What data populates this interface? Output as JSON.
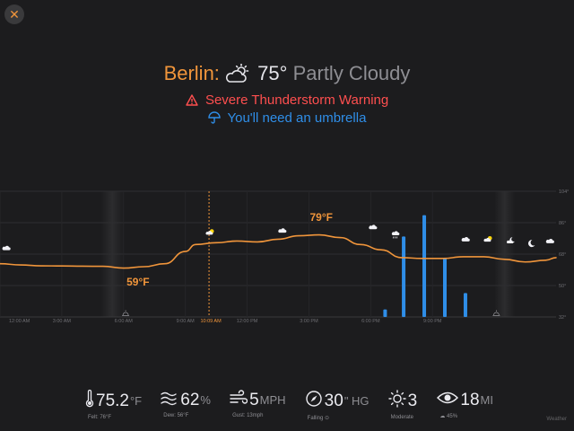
{
  "close_label": "✕",
  "header": {
    "city": "Berlin:",
    "temperature": "75°",
    "condition": "Partly Cloudy",
    "condition_icon": "cloud-sun-icon",
    "warning": "Severe Thunderstorm Warning",
    "umbrella": "You'll need an umbrella"
  },
  "colors": {
    "accent": "#f0953b",
    "warning": "#ff4f4f",
    "rain": "#2f8ee8",
    "background": "#1c1c1e"
  },
  "chart_data": {
    "type": "line",
    "x_labels": [
      "12:00 AM",
      "3:00 AM",
      "6:00 AM",
      "9:00 AM",
      "10:09 AM",
      "12:00 PM",
      "3:00 PM",
      "6:00 PM",
      "9:00 PM"
    ],
    "now_label": "10:09 AM",
    "now_hour": 10.15,
    "y_ticks": [
      "104°",
      "86°",
      "68°",
      "50°",
      "32°"
    ],
    "y_values": [
      104,
      86,
      68,
      50,
      32
    ],
    "ylim": [
      32,
      104
    ],
    "xlim": [
      0,
      27
    ],
    "min_label": "59°F",
    "max_label": "79°F",
    "series": [
      {
        "values": [
          [
            0,
            62.5
          ],
          [
            1,
            61.8
          ],
          [
            2,
            61.3
          ],
          [
            3,
            61.2
          ],
          [
            4,
            61.1
          ],
          [
            5,
            61
          ],
          [
            6,
            60
          ],
          [
            7,
            60.8
          ],
          [
            8,
            62.5
          ],
          [
            9,
            69.5
          ],
          [
            9.5,
            73.5
          ],
          [
            10.5,
            74.5
          ],
          [
            11.5,
            75.5
          ],
          [
            12.5,
            75
          ],
          [
            13.5,
            76.5
          ],
          [
            14.5,
            78.5
          ],
          [
            15.5,
            79
          ],
          [
            16.5,
            77.5
          ],
          [
            17.5,
            73.5
          ],
          [
            18.5,
            70.5
          ],
          [
            19.5,
            66
          ],
          [
            20.5,
            65.5
          ],
          [
            21.5,
            65.5
          ],
          [
            22.5,
            66.5
          ],
          [
            23.5,
            66.5
          ],
          [
            24.5,
            65
          ],
          [
            25.5,
            63.5
          ],
          [
            26.5,
            64.5
          ],
          [
            27,
            66
          ]
        ]
      }
    ],
    "precipitation": [
      {
        "hour": 18.7,
        "fraction": 0.06
      },
      {
        "hour": 19.6,
        "fraction": 0.64
      },
      {
        "hour": 20.6,
        "fraction": 0.81
      },
      {
        "hour": 21.6,
        "fraction": 0.47
      },
      {
        "hour": 22.6,
        "fraction": 0.19
      }
    ],
    "night_bands": [
      {
        "start": 4.9,
        "end": 6.0
      },
      {
        "start": 24.0,
        "end": 25.0
      }
    ],
    "sun_events": [
      {
        "hour": 6.1,
        "icon": "sunrise-icon"
      },
      {
        "hour": 24.1,
        "icon": "sunset-icon"
      }
    ],
    "weather_icons": [
      {
        "hour": 0.3,
        "temp": 68,
        "icon": "cloud-icon"
      },
      {
        "hour": 10.2,
        "temp": 77,
        "icon": "cloud-sun-icon"
      },
      {
        "hour": 13.7,
        "temp": 78,
        "icon": "cloud-icon"
      },
      {
        "hour": 18.1,
        "temp": 80,
        "icon": "cloud-icon"
      },
      {
        "hour": 19.2,
        "temp": 76,
        "icon": "cloud-rain-icon"
      },
      {
        "hour": 22.6,
        "temp": 73,
        "icon": "cloud-icon"
      },
      {
        "hour": 23.7,
        "temp": 73,
        "icon": "cloud-sun-icon"
      },
      {
        "hour": 24.8,
        "temp": 72,
        "icon": "cloud-moon-icon"
      },
      {
        "hour": 25.8,
        "temp": 71,
        "icon": "moon-icon"
      },
      {
        "hour": 26.7,
        "temp": 72,
        "icon": "cloud-icon"
      }
    ]
  },
  "stats": [
    {
      "icon": "thermometer-icon",
      "value": "75.2",
      "unit": "°F",
      "sub": "Felt: 76°F"
    },
    {
      "icon": "dew-icon",
      "value": "62",
      "unit": "%",
      "sub": "Dew: 56°F"
    },
    {
      "icon": "wind-icon",
      "value": "5",
      "unit": "MPH",
      "sub": "Gust: 13mph"
    },
    {
      "icon": "compass-icon",
      "value": "30",
      "unit": "\" HG",
      "sub": "Falling  ⊙"
    },
    {
      "icon": "sun-icon",
      "value": "3",
      "unit": "",
      "sub": "Moderate"
    },
    {
      "icon": "eye-icon",
      "value": "18",
      "unit": "MI",
      "sub": "☁  45%"
    }
  ],
  "attribution": "Weather"
}
